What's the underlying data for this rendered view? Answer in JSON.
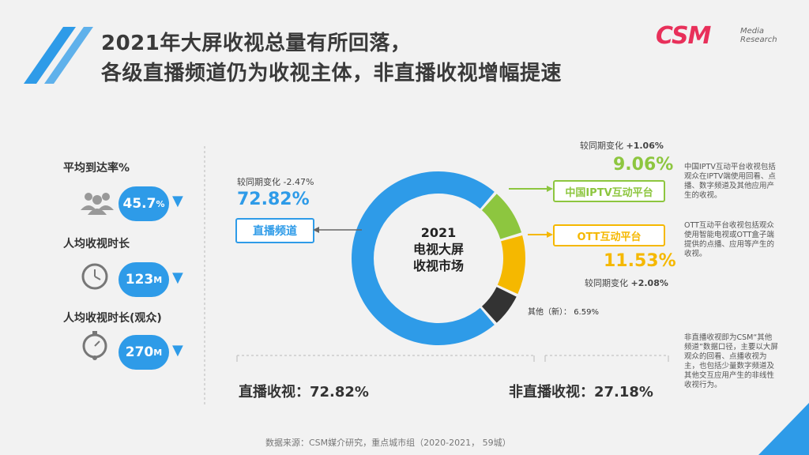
{
  "title_line1": "2021年大屏收视总量有所回落，",
  "title_line2": "各级直播频道仍为收视主体，非直播收视增幅提速",
  "logo": {
    "main": "CSM",
    "sub1": "Media",
    "sub2": "Research"
  },
  "metrics": [
    {
      "label": "平均到达率%",
      "value": "45.7",
      "unit": "%",
      "icon": "people-icon"
    },
    {
      "label": "人均收视时长",
      "value": "123",
      "unit": "M",
      "icon": "clock-icon"
    },
    {
      "label": "人均收视时长(观众)",
      "value": "270",
      "unit": "M",
      "icon": "stopwatch-icon"
    }
  ],
  "center_label": [
    "2021",
    "电视大屏",
    "收视市场"
  ],
  "live": {
    "change": "较同期变化 -2.47%",
    "pct": "72.82%",
    "name": "直播频道"
  },
  "iptv": {
    "change_prefix": "较同期变化 ",
    "change_val": "+1.06%",
    "pct": "9.06%",
    "name": "中国IPTV互动平台",
    "note": "中国IPTV互动平台收视包括观众在IPTV端使用回看、点播、数字频道及其他应用产生的收视。"
  },
  "ott": {
    "change_prefix": "较同期变化 ",
    "change_val": "+2.08%",
    "pct": "11.53%",
    "name": "OTT互动平台",
    "note": "OTT互动平台收视包括观众使用智能电视或OTT盒子端提供的点播、应用等产生的收视。"
  },
  "other": {
    "label": "其他（新）：",
    "pct": "6.59%",
    "note": "非直播收视即为CSM“其他频道”数据口径，主要以大屏观众的回看、点播收视为主，也包括少量数字频道及其他交互应用产生的非线性收视行为。"
  },
  "totals": {
    "live": "直播收视：72.82%",
    "nonlive": "非直播收视：27.18%"
  },
  "source": "数据来源：CSM媒介研究，重点城市组（2020-2021， 59城）",
  "colors": {
    "live": "#2e9be8",
    "iptv": "#8dc63f",
    "ott": "#f5b800",
    "other": "#333333"
  },
  "chart_data": {
    "type": "pie",
    "categories": [
      "直播频道",
      "中国IPTV互动平台",
      "OTT互动平台",
      "其他（新）"
    ],
    "values": [
      72.82,
      9.06,
      11.53,
      6.59
    ],
    "changes": [
      -2.47,
      1.06,
      2.08,
      null
    ],
    "title": "2021 电视大屏收视市场"
  }
}
